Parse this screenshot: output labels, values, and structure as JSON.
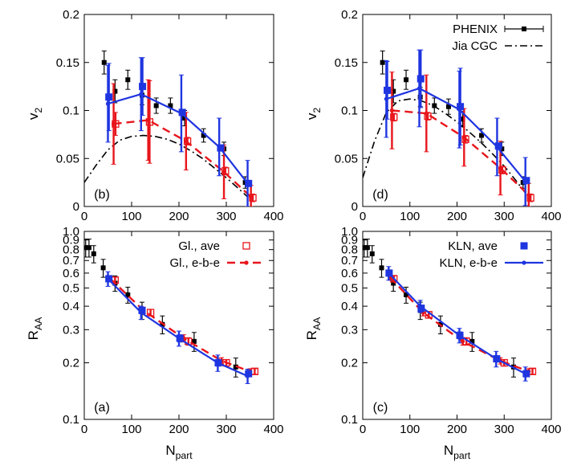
{
  "colors": {
    "phenix": "#000000",
    "glauber": "#e8151b",
    "kln": "#1f35e0",
    "cgc": "#000000"
  },
  "chart_data": [
    {
      "id": "b",
      "type": "scatter",
      "panel_label": "(b)",
      "xlim": [
        0,
        400
      ],
      "ylim": [
        0,
        0.2
      ],
      "yscale": "linear",
      "xticks": [
        "0",
        "100",
        "200",
        "300",
        "400"
      ],
      "yticks": [
        "0",
        "0.05",
        "0.1",
        "0.15",
        "0.2"
      ],
      "ylabel": "v",
      "ylabel_sub": "2",
      "xlabel": "",
      "xlabel_sub": "",
      "legend": [],
      "series": [
        {
          "name": "PHENIX",
          "style": "phenix",
          "color": "#000000",
          "x": [
            42,
            65,
            92,
            122,
            152,
            182,
            212,
            252,
            295,
            340
          ],
          "y": [
            0.15,
            0.12,
            0.132,
            0.116,
            0.105,
            0.105,
            0.092,
            0.074,
            0.06,
            0.025
          ],
          "err": [
            0.012,
            0.012,
            0.01,
            0.01,
            0.008,
            0.008,
            0.008,
            0.007,
            0.007,
            0.006
          ]
        },
        {
          "name": "Jia CGC",
          "style": "dashdot",
          "color": "#000000",
          "x": [
            0,
            25,
            50,
            75,
            100,
            125,
            150,
            175,
            200,
            225,
            250,
            275,
            300,
            325,
            345
          ],
          "y": [
            0.025,
            0.043,
            0.059,
            0.069,
            0.073,
            0.074,
            0.073,
            0.07,
            0.065,
            0.058,
            0.05,
            0.04,
            0.03,
            0.019,
            0.01
          ]
        },
        {
          "name": "Gl., e-b-e",
          "style": "dashed-dots",
          "color": "#e8151b",
          "x": [
            62,
            135,
            215,
            295,
            352
          ],
          "y": [
            0.086,
            0.09,
            0.068,
            0.036,
            0.01
          ],
          "err": [
            0.042,
            0.042,
            0.03,
            0.028,
            0.012
          ]
        },
        {
          "name": "Gl., ave",
          "style": "open-squares",
          "color": "#e8151b",
          "x": [
            66,
            138,
            218,
            298,
            356
          ],
          "y": [
            0.086,
            0.088,
            0.068,
            0.037,
            0.009
          ],
          "err": [
            0.012,
            0.043,
            0.004,
            0.004,
            0.004
          ]
        },
        {
          "name": "KLN, e-b-e",
          "style": "solid-dots",
          "color": "#1f35e0",
          "x": [
            50,
            120,
            205,
            285,
            345
          ],
          "y": [
            0.107,
            0.117,
            0.097,
            0.062,
            0.024
          ],
          "err": [
            0.04,
            0.038,
            0.04,
            0.03,
            0.024
          ]
        },
        {
          "name": "KLN, ave",
          "style": "filled-squares",
          "color": "#1f35e0",
          "x": [
            52,
            123,
            207,
            288,
            347
          ],
          "y": [
            0.114,
            0.125,
            0.098,
            0.061,
            0.024
          ],
          "err": [
            0.035,
            0.03,
            0.002,
            0.002,
            0.002
          ]
        }
      ]
    },
    {
      "id": "d",
      "type": "scatter",
      "panel_label": "(d)",
      "xlim": [
        0,
        400
      ],
      "ylim": [
        0,
        0.2
      ],
      "yscale": "linear",
      "xticks": [
        "0",
        "100",
        "200",
        "300",
        "400"
      ],
      "yticks": [
        "0",
        "0.05",
        "0.1",
        "0.15",
        "0.2"
      ],
      "ylabel": "v",
      "ylabel_sub": "2",
      "xlabel": "",
      "xlabel_sub": "",
      "legend": [
        {
          "label": "PHENIX",
          "style": "phenix",
          "color": "#000000"
        },
        {
          "label": "Jia CGC",
          "style": "dashdot",
          "color": "#000000"
        }
      ],
      "series": [
        {
          "name": "PHENIX",
          "style": "phenix",
          "color": "#000000",
          "x": [
            42,
            65,
            92,
            122,
            152,
            182,
            212,
            252,
            295,
            340
          ],
          "y": [
            0.15,
            0.12,
            0.132,
            0.114,
            0.105,
            0.104,
            0.091,
            0.074,
            0.06,
            0.025
          ],
          "err": [
            0.012,
            0.012,
            0.01,
            0.01,
            0.008,
            0.008,
            0.008,
            0.007,
            0.007,
            0.006
          ]
        },
        {
          "name": "Jia CGC",
          "style": "dashdot",
          "color": "#000000",
          "x": [
            0,
            25,
            50,
            75,
            100,
            125,
            150,
            175,
            200,
            225,
            250,
            275,
            300,
            325,
            345
          ],
          "y": [
            0.03,
            0.068,
            0.098,
            0.11,
            0.112,
            0.11,
            0.105,
            0.097,
            0.088,
            0.078,
            0.067,
            0.055,
            0.042,
            0.027,
            0.014
          ]
        },
        {
          "name": "Gl., e-b-e",
          "style": "dashed-dots",
          "color": "#e8151b",
          "x": [
            62,
            135,
            215,
            292,
            352
          ],
          "y": [
            0.1,
            0.097,
            0.072,
            0.04,
            0.012
          ],
          "err": [
            0.04,
            0.04,
            0.03,
            0.028,
            0.012
          ]
        },
        {
          "name": "Gl., ave",
          "style": "open-squares",
          "color": "#e8151b",
          "x": [
            66,
            138,
            218,
            296,
            356
          ],
          "y": [
            0.093,
            0.094,
            0.07,
            0.038,
            0.009
          ],
          "err": [
            0.004,
            0.004,
            0.004,
            0.004,
            0.004
          ]
        },
        {
          "name": "KLN, e-b-e",
          "style": "solid-dots",
          "color": "#1f35e0",
          "x": [
            50,
            120,
            205,
            285,
            345
          ],
          "y": [
            0.112,
            0.123,
            0.101,
            0.062,
            0.026
          ],
          "err": [
            0.04,
            0.04,
            0.04,
            0.03,
            0.025
          ]
        },
        {
          "name": "KLN, ave",
          "style": "filled-squares",
          "color": "#1f35e0",
          "x": [
            52,
            123,
            207,
            288,
            347
          ],
          "y": [
            0.121,
            0.133,
            0.104,
            0.063,
            0.027
          ],
          "err": [
            0.03,
            0.03,
            0.04,
            0.002,
            0.002
          ]
        }
      ]
    },
    {
      "id": "a",
      "type": "scatter",
      "panel_label": "(a)",
      "xlim": [
        0,
        400
      ],
      "ylim": [
        0.1,
        1.0
      ],
      "yscale": "log",
      "xticks": [
        "0",
        "100",
        "200",
        "300",
        "400"
      ],
      "ytick_values": [
        0.1,
        0.2,
        0.3,
        0.4,
        0.5,
        0.6,
        0.7,
        0.8,
        0.9,
        1.0
      ],
      "yticks": [
        "0.1",
        "0.2",
        "0.3",
        "0.4",
        "0.5",
        "0.6",
        "0.7",
        "0.8",
        "0.9",
        "1.0"
      ],
      "ylabel": "R",
      "ylabel_sub": "AA",
      "xlabel": "N",
      "xlabel_sub": "part",
      "legend": [
        {
          "label": "Gl., ave",
          "style": "open-squares",
          "color": "#e8151b"
        },
        {
          "label": "Gl., e-b-e",
          "style": "dashed-dots",
          "color": "#e8151b"
        }
      ],
      "series": [
        {
          "name": "PHENIX",
          "style": "phenix",
          "color": "#000000",
          "x": [
            3,
            10,
            20,
            40,
            65,
            92,
            122,
            165,
            232,
            320
          ],
          "y": [
            0.82,
            0.82,
            0.76,
            0.64,
            0.53,
            0.46,
            0.38,
            0.32,
            0.26,
            0.19
          ],
          "err": [
            0.09,
            0.09,
            0.08,
            0.07,
            0.05,
            0.045,
            0.04,
            0.035,
            0.03,
            0.022
          ]
        },
        {
          "name": "Gl., e-b-e",
          "style": "dashed-dots",
          "color": "#e8151b",
          "x": [
            55,
            125,
            210,
            290,
            350
          ],
          "y": [
            0.56,
            0.38,
            0.27,
            0.205,
            0.18
          ],
          "err": [
            0.02,
            0.015,
            0.012,
            0.008,
            0.006
          ]
        },
        {
          "name": "Gl., ave",
          "style": "open-squares",
          "color": "#e8151b",
          "x": [
            65,
            140,
            220,
            300,
            360
          ],
          "y": [
            0.55,
            0.37,
            0.26,
            0.2,
            0.18
          ],
          "err": [
            0.02,
            0.015,
            0.012,
            0.008,
            0.006
          ]
        },
        {
          "name": "KLN, e-b-e",
          "style": "solid-dots",
          "color": "#1f35e0",
          "x": [
            50,
            120,
            200,
            282,
            345
          ],
          "y": [
            0.56,
            0.37,
            0.27,
            0.2,
            0.17
          ],
          "err": [
            0.05,
            0.03,
            0.025,
            0.02,
            0.015
          ]
        },
        {
          "name": "KLN, ave",
          "style": "filled-squares",
          "color": "#1f35e0",
          "x": [
            52,
            122,
            202,
            283,
            347
          ],
          "y": [
            0.56,
            0.38,
            0.27,
            0.2,
            0.175
          ],
          "err": [
            0.02,
            0.015,
            0.012,
            0.008,
            0.006
          ]
        }
      ]
    },
    {
      "id": "c",
      "type": "scatter",
      "panel_label": "(c)",
      "xlim": [
        0,
        400
      ],
      "ylim": [
        0.1,
        1.0
      ],
      "yscale": "log",
      "xticks": [
        "0",
        "100",
        "200",
        "300",
        "400"
      ],
      "ytick_values": [
        0.1,
        0.2,
        0.3,
        0.4,
        0.5,
        0.6,
        0.7,
        0.8,
        0.9,
        1.0
      ],
      "yticks": [
        "0.1",
        "0.2",
        "0.3",
        "0.4",
        "0.5",
        "0.6",
        "0.7",
        "0.8",
        "0.9",
        "1.0"
      ],
      "ylabel": "R",
      "ylabel_sub": "AA",
      "xlabel": "N",
      "xlabel_sub": "part",
      "legend": [
        {
          "label": "KLN, ave",
          "style": "filled-squares",
          "color": "#1f35e0"
        },
        {
          "label": "KLN, e-b-e",
          "style": "solid-dots",
          "color": "#1f35e0"
        }
      ],
      "series": [
        {
          "name": "PHENIX",
          "style": "phenix",
          "color": "#000000",
          "x": [
            3,
            10,
            20,
            40,
            65,
            92,
            122,
            165,
            232,
            320
          ],
          "y": [
            0.82,
            0.82,
            0.76,
            0.64,
            0.53,
            0.46,
            0.38,
            0.32,
            0.26,
            0.19
          ],
          "err": [
            0.09,
            0.09,
            0.08,
            0.07,
            0.05,
            0.045,
            0.04,
            0.035,
            0.03,
            0.022
          ]
        },
        {
          "name": "Gl., e-b-e",
          "style": "dashed-dots",
          "color": "#e8151b",
          "x": [
            58,
            128,
            212,
            292,
            352
          ],
          "y": [
            0.57,
            0.37,
            0.26,
            0.205,
            0.18
          ],
          "err": [
            0.02,
            0.015,
            0.012,
            0.008,
            0.006
          ]
        },
        {
          "name": "Gl., ave",
          "style": "open-squares",
          "color": "#e8151b",
          "x": [
            66,
            140,
            220,
            300,
            360
          ],
          "y": [
            0.56,
            0.36,
            0.26,
            0.2,
            0.18
          ],
          "err": [
            0.02,
            0.015,
            0.012,
            0.008,
            0.006
          ]
        },
        {
          "name": "KLN, e-b-e",
          "style": "solid-dots",
          "color": "#1f35e0",
          "x": [
            55,
            122,
            205,
            283,
            345
          ],
          "y": [
            0.6,
            0.4,
            0.28,
            0.21,
            0.175
          ],
          "err": [
            0.05,
            0.03,
            0.025,
            0.02,
            0.015
          ]
        },
        {
          "name": "KLN, ave",
          "style": "filled-squares",
          "color": "#1f35e0",
          "x": [
            56,
            124,
            206,
            284,
            347
          ],
          "y": [
            0.6,
            0.39,
            0.28,
            0.21,
            0.175
          ],
          "err": [
            0.02,
            0.015,
            0.012,
            0.008,
            0.006
          ]
        }
      ]
    }
  ]
}
